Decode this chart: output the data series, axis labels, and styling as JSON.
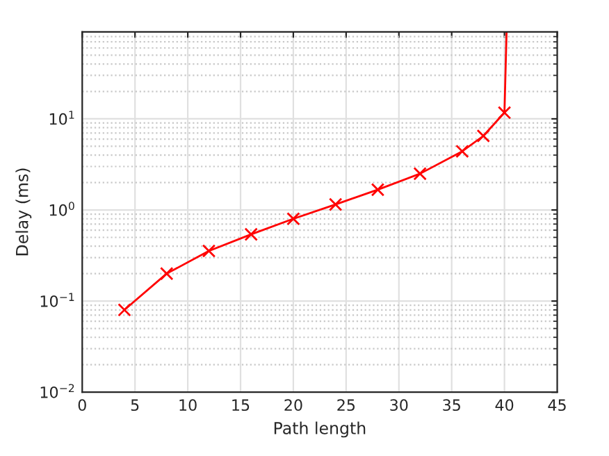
{
  "chart_data": {
    "type": "line",
    "xlabel": "Path length",
    "ylabel": "Delay (ms)",
    "log": "y",
    "grid": true,
    "marker": "cross",
    "line_style": "solid",
    "xlim": [
      0,
      45
    ],
    "xticks": [
      0,
      5,
      10,
      15,
      20,
      25,
      30,
      35,
      40,
      45
    ],
    "ylim": [
      0.01,
      90
    ],
    "yticks": [
      {
        "value": 0.01,
        "label": "10$^{−2}$"
      },
      {
        "value": 0.1,
        "label": "10$^{−1}$"
      },
      {
        "value": 1,
        "label": "10$^{0}$"
      },
      {
        "value": 10,
        "label": "10$^{1}$"
      }
    ],
    "series": [
      {
        "color": "#ff0000",
        "x": [
          4,
          8,
          12,
          16,
          20,
          24,
          28,
          32,
          36,
          38,
          40
        ],
        "values": [
          0.08,
          0.2,
          0.355,
          0.54,
          0.8,
          1.15,
          1.67,
          2.5,
          4.4,
          6.5,
          11.7
        ]
      },
      {
        "color": "#ff0000",
        "marker": "none",
        "x": [
          40,
          40.2
        ],
        "values": [
          11.7,
          90
        ]
      }
    ]
  }
}
